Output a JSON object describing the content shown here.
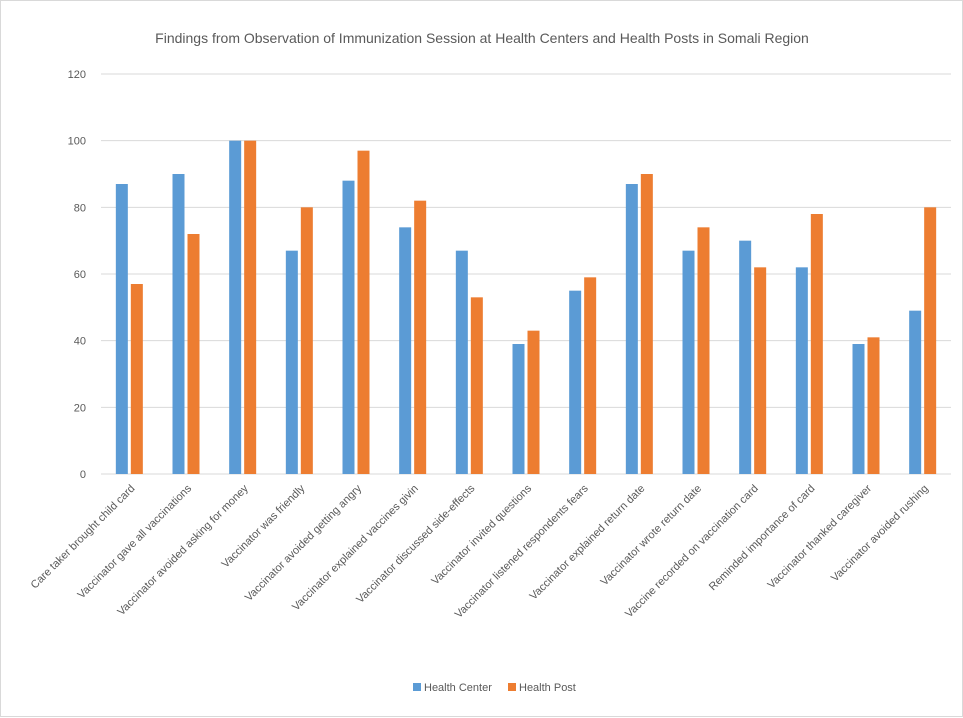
{
  "chart_data": {
    "type": "bar",
    "title": "Findings from Observation of Immunization Session at Health Centers and Health Posts in Somali Region",
    "xlabel": "",
    "ylabel": "",
    "ylim": [
      0,
      120
    ],
    "yticks": [
      0,
      20,
      40,
      60,
      80,
      100,
      120
    ],
    "grid": true,
    "legend_position": "bottom",
    "categories": [
      "Care taker brought child card",
      "Vaccinator gave all vaccinations",
      "Vaccinator avoided asking for money",
      "Vaccinator was friendly",
      "Vaccinator avoided getting angry",
      "Vaccinator explained vaccines givin",
      "Vaccinator discussed side-effects",
      "Vaccinator invited questions",
      "Vaccinator listened respondents fears",
      "Vaccinator explained return date",
      "Vaccinator wrote return date",
      "Vaccine recorded  on vaccination card",
      "Reminded importance of card",
      "Vaccinator thanked caregiver",
      "Vaccinator avoided rushing"
    ],
    "series": [
      {
        "name": "Health Center",
        "color": "#5B9BD5",
        "values": [
          87,
          90,
          100,
          67,
          88,
          74,
          67,
          39,
          55,
          87,
          67,
          70,
          62,
          39,
          49
        ]
      },
      {
        "name": "Health Post",
        "color": "#ED7D31",
        "values": [
          57,
          72,
          100,
          80,
          97,
          82,
          53,
          43,
          59,
          90,
          74,
          62,
          78,
          41,
          80
        ]
      }
    ]
  }
}
